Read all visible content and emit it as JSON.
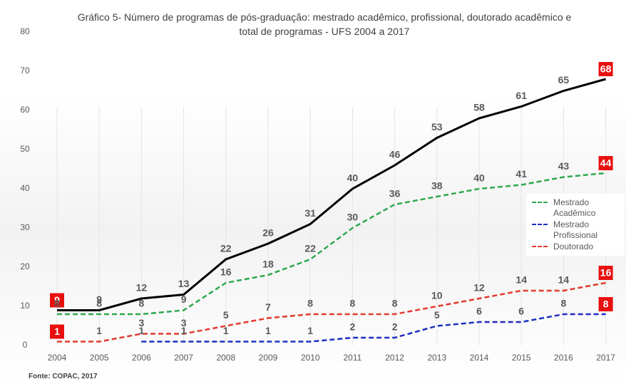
{
  "chart_data": {
    "type": "line",
    "title": "Gráfico 5- Número de programas de pós-graduação: mestrado acadêmico, profissional, doutorado acadêmico e total de programas - UFS 2004 a 2017",
    "categories": [
      "2004",
      "2005",
      "2006",
      "2007",
      "2008",
      "2009",
      "2010",
      "2011",
      "2012",
      "2013",
      "2014",
      "2015",
      "2016",
      "2017"
    ],
    "series": [
      {
        "color": "#000000",
        "values": [
          9,
          9,
          12,
          13,
          22,
          26,
          31,
          40,
          46,
          53,
          58,
          61,
          65,
          68
        ]
      },
      {
        "name": "Mestrado Acadêmico",
        "color": "#2ea84f",
        "values": [
          8,
          8,
          8,
          9,
          16,
          18,
          22,
          30,
          36,
          38,
          40,
          41,
          43,
          44
        ]
      },
      {
        "name": "Mestrado Profissional",
        "color": "#1f2fbf",
        "values": [
          null,
          null,
          1,
          1,
          1,
          1,
          1,
          2,
          2,
          5,
          6,
          6,
          8,
          8
        ]
      },
      {
        "name": "Doutorado",
        "color": "#e23a2e",
        "values": [
          1,
          1,
          3,
          3,
          5,
          7,
          8,
          8,
          8,
          10,
          12,
          14,
          14,
          16
        ]
      }
    ],
    "ylim": [
      0,
      80
    ],
    "yticks": [
      0,
      10,
      20,
      30,
      40,
      50,
      60,
      70,
      80
    ],
    "legend": "right",
    "source": "Fonte: COPAC, 2017"
  }
}
